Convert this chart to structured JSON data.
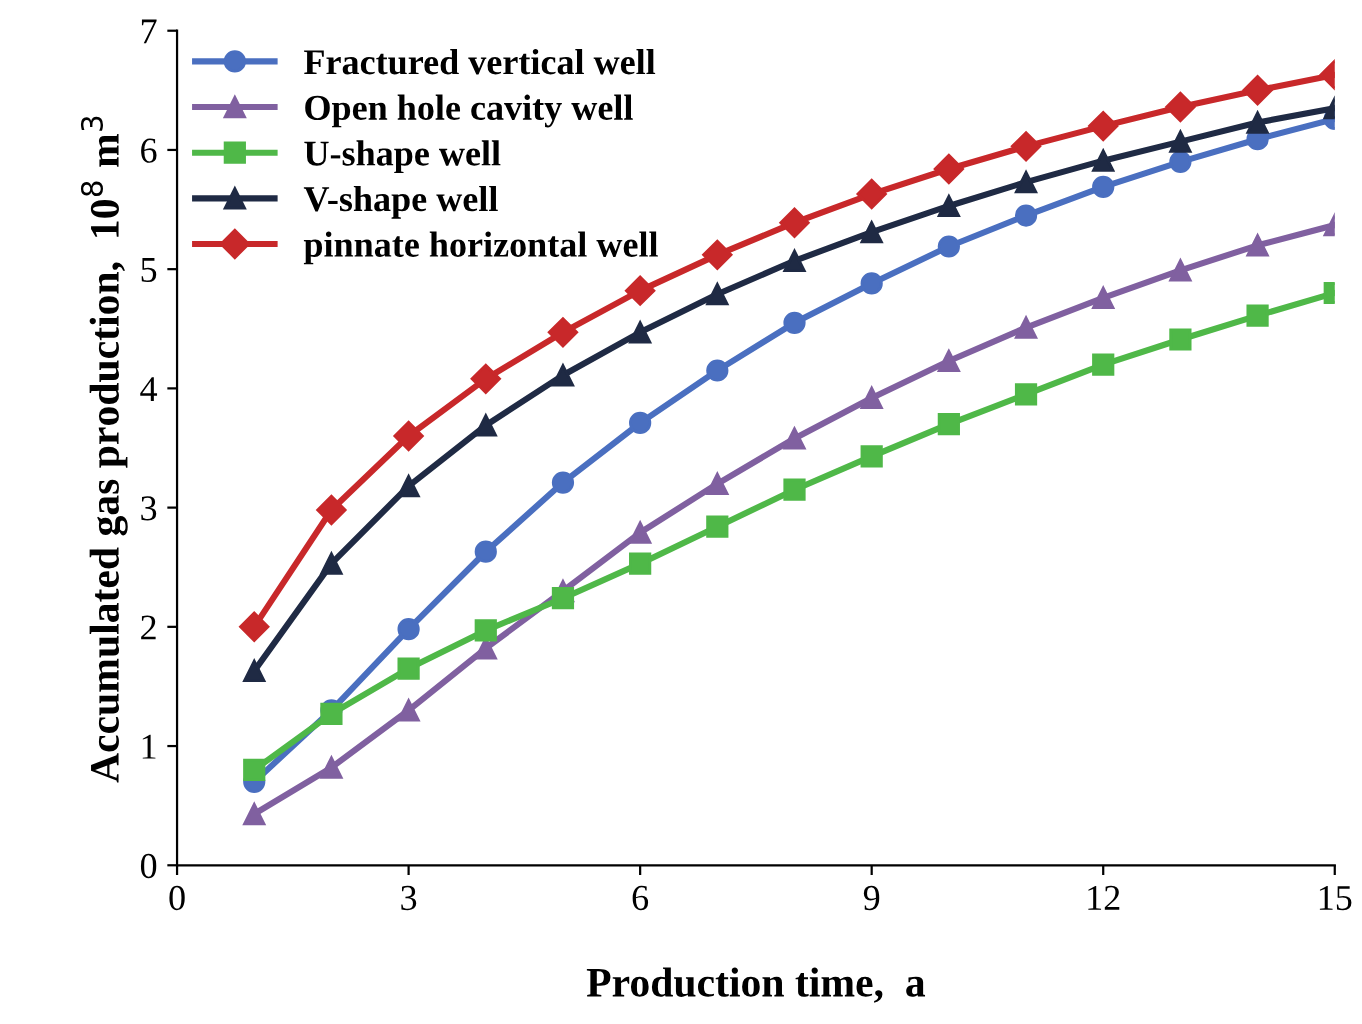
{
  "chart_data": {
    "type": "line",
    "xlabel": "Production time,  a",
    "ylabel": "Accumulated gas production,  10$^{8}$ m$^{3}$",
    "x": [
      1,
      2,
      3,
      4,
      5,
      6,
      7,
      8,
      9,
      10,
      11,
      12,
      13,
      14,
      15
    ],
    "series": [
      {
        "name": "Fractured vertical well",
        "color": "#4a6fc0",
        "marker": "circle",
        "values": [
          0.7,
          1.3,
          1.98,
          2.63,
          3.21,
          3.71,
          4.15,
          4.55,
          4.88,
          5.19,
          5.45,
          5.69,
          5.9,
          6.09,
          6.26
        ]
      },
      {
        "name": "Open hole cavity well",
        "color": "#8060a0",
        "marker": "triangle",
        "values": [
          0.43,
          0.82,
          1.3,
          1.82,
          2.3,
          2.79,
          3.2,
          3.58,
          3.92,
          4.23,
          4.51,
          4.76,
          4.99,
          5.2,
          5.37
        ]
      },
      {
        "name": "U-shape well",
        "color": "#4fb848",
        "marker": "square",
        "values": [
          0.8,
          1.27,
          1.65,
          1.97,
          2.24,
          2.53,
          2.84,
          3.15,
          3.43,
          3.7,
          3.95,
          4.2,
          4.41,
          4.61,
          4.8
        ]
      },
      {
        "name": "V-shape well",
        "color": "#1f2a44",
        "marker": "triangle",
        "values": [
          1.63,
          2.53,
          3.18,
          3.69,
          4.11,
          4.47,
          4.79,
          5.07,
          5.31,
          5.53,
          5.73,
          5.91,
          6.07,
          6.23,
          6.35
        ]
      },
      {
        "name": "pinnate horizontal well",
        "color": "#c8282a",
        "marker": "diamond",
        "values": [
          2.0,
          2.98,
          3.6,
          4.08,
          4.47,
          4.82,
          5.12,
          5.39,
          5.63,
          5.84,
          6.03,
          6.2,
          6.36,
          6.5,
          6.63
        ]
      }
    ],
    "xlim": [
      0,
      15
    ],
    "xticks": [
      0,
      3,
      6,
      9,
      12,
      15
    ],
    "ylim": [
      0,
      7
    ],
    "yticks": [
      0,
      1,
      2,
      3,
      4,
      5,
      6,
      7
    ],
    "grid": false,
    "legend": "top left",
    "line_style": "solid"
  }
}
